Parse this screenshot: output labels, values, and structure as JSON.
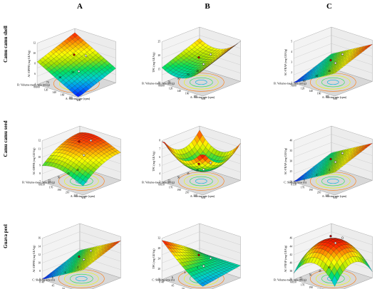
{
  "figure": {
    "column_labels": [
      "A",
      "B",
      "C"
    ],
    "row_labels": [
      "Camu camu shell",
      "Camu camu seed",
      "Guava peel"
    ]
  },
  "palette": [
    "#0000ff",
    "#0080ff",
    "#00d0d0",
    "#00e060",
    "#a0e000",
    "#ffff00",
    "#ffa000",
    "#ff3000",
    "#e00000"
  ],
  "chart_data": [
    {
      "id": "A1",
      "type": "surface3d",
      "z_label": "AC-DPPH (mg GEA/g)",
      "x_label": "A: Stirring rate (rpm)",
      "y_label": "B: Volume-mass ratio (ml/g)",
      "z_ticks": [
        "4",
        "6",
        "8",
        "10",
        "12"
      ],
      "x_ticks": [
        "100",
        "120",
        "140",
        "160",
        "180",
        "200"
      ],
      "y_ticks": [
        "50",
        "60",
        "70",
        "80"
      ],
      "shape": "slope",
      "flip": false
    },
    {
      "id": "B1",
      "type": "surface3d",
      "z_label": "TPC (mg GEA/g)",
      "x_label": "A: Stirring rate (rpm)",
      "y_label": "B: Volume-mass ratio (ml/g)",
      "z_ticks": [
        "10",
        "15",
        "20",
        "25"
      ],
      "x_ticks": [
        "100",
        "120",
        "140",
        "160",
        "180",
        "200"
      ],
      "y_ticks": [
        "40",
        "50",
        "60",
        "70",
        "80"
      ],
      "shape": "saddle",
      "flip": false
    },
    {
      "id": "C1",
      "type": "surface3d",
      "z_label": "AC-FRAP (mg GEA/g)",
      "x_label": "A: Stirring rate (rpm)",
      "y_label": "B: Volume-mass ratio (ml/g)",
      "z_ticks": [
        "1",
        "2",
        "3",
        "4",
        "5"
      ],
      "x_ticks": [
        "100",
        "120",
        "140",
        "160",
        "180",
        "200"
      ],
      "y_ticks": [
        "40",
        "50",
        "60",
        "70"
      ],
      "shape": "slope",
      "flip": true
    },
    {
      "id": "A2",
      "type": "surface3d",
      "z_label": "AC-DPPH (mg GEA/g)",
      "x_label": "A: Stirring rate (rpm)",
      "y_label": "B: Volume-mass ratio (ml/g)",
      "z_ticks": [
        "7",
        "8",
        "9",
        "10",
        "11",
        "12"
      ],
      "x_ticks": [
        "150",
        "170",
        "190",
        "210",
        "230",
        "250"
      ],
      "y_ticks": [
        "40",
        "45",
        "50",
        "55",
        "60"
      ],
      "shape": "dome_slope",
      "flip": false
    },
    {
      "id": "B2",
      "type": "surface3d",
      "z_label": "TPC (mg GEA/g)",
      "x_label": "A: Stirring rate (rpm)",
      "y_label": "B: Volume-mass ratio (ml/g)",
      "z_ticks": [
        "3",
        "4",
        "5",
        "6",
        "7",
        "8"
      ],
      "x_ticks": [
        "150",
        "170",
        "190",
        "210",
        "230",
        "250"
      ],
      "y_ticks": [
        "40",
        "45",
        "50",
        "55",
        "60"
      ],
      "shape": "bowl",
      "flip": false
    },
    {
      "id": "C2",
      "type": "surface3d",
      "z_label": "AC-FRAP (mg GEA/g)",
      "x_label": "A: Stirring rate (rpm)",
      "y_label": "C: Shaking time (h)",
      "z_ticks": [
        "20",
        "25",
        "30",
        "35",
        "40"
      ],
      "x_ticks": [
        "150",
        "170",
        "190",
        "210",
        "230",
        "250"
      ],
      "y_ticks": [
        "2",
        "4",
        "6",
        "8"
      ],
      "shape": "slope",
      "flip": true
    },
    {
      "id": "A3",
      "type": "surface3d",
      "z_label": "AC-DPPH (mg GEA/g)",
      "x_label": "B: Volume-mass ratio (ml/g)",
      "y_label": "C: Shaking time (h)",
      "z_ticks": [
        "6",
        "8",
        "10",
        "12",
        "14",
        "16"
      ],
      "x_ticks": [
        "40",
        "45",
        "50",
        "55",
        "60"
      ],
      "y_ticks": [
        "2",
        "4",
        "6",
        "8"
      ],
      "shape": "slope",
      "flip": true
    },
    {
      "id": "B3",
      "type": "surface3d",
      "z_label": "TPC (mg GEA/g)",
      "x_label": "B: Volume-mass ratio (ml/g)",
      "y_label": "C: Shaking time (h)",
      "z_ticks": [
        "16",
        "20",
        "24",
        "28",
        "32"
      ],
      "x_ticks": [
        "40",
        "45",
        "50",
        "55",
        "60"
      ],
      "y_ticks": [
        "2",
        "4",
        "6",
        "8"
      ],
      "shape": "peak_corner",
      "flip": false
    },
    {
      "id": "C3",
      "type": "surface3d",
      "z_label": "AC-FRAP (mg GEA/g)",
      "x_label": "A: Stirring rate (rpm)",
      "y_label": "B: Volume-mass ratio (ml/g)",
      "z_ticks": [
        "36",
        "38",
        "40",
        "42",
        "44",
        "46"
      ],
      "x_ticks": [
        "150",
        "170",
        "190",
        "210",
        "230",
        "250"
      ],
      "y_ticks": [
        "40",
        "45",
        "50",
        "55",
        "60"
      ],
      "shape": "dome",
      "flip": false
    }
  ]
}
